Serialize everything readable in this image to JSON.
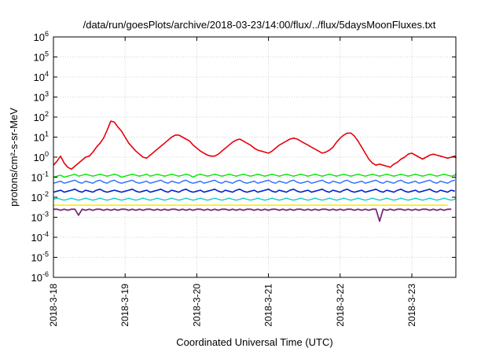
{
  "chart_data": {
    "type": "line",
    "title": "/data/run/goesPlots/archive/2018-03-23/14:00/flux/../flux/5daysMoonFluxes.txt",
    "xlabel": "Coordinated Universal Time (UTC)",
    "ylabel": "protons/cm²-s-sr-MeV",
    "yscale": "log",
    "ylim": [
      1e-06,
      1000000.0
    ],
    "y_ticks": [
      {
        "base": "10",
        "exp": "-6"
      },
      {
        "base": "10",
        "exp": "-5"
      },
      {
        "base": "10",
        "exp": "-4"
      },
      {
        "base": "10",
        "exp": "-3"
      },
      {
        "base": "10",
        "exp": "-2"
      },
      {
        "base": "10",
        "exp": "-1"
      },
      {
        "base": "10",
        "exp": "0"
      },
      {
        "base": "10",
        "exp": "1"
      },
      {
        "base": "10",
        "exp": "2"
      },
      {
        "base": "10",
        "exp": "3"
      },
      {
        "base": "10",
        "exp": "4"
      },
      {
        "base": "10",
        "exp": "5"
      },
      {
        "base": "10",
        "exp": "6"
      }
    ],
    "x_range_days": [
      "2018-03-18",
      "2018-03-23 14:00"
    ],
    "x_ticks": [
      "2018-3-18",
      "2018-3-19",
      "2018-3-20",
      "2018-3-21",
      "2018-3-22",
      "2018-3-23"
    ],
    "grid": true,
    "x_sampling_days": 0.05,
    "series": [
      {
        "color": "#e8000b",
        "width": 1.6,
        "log10_values": [
          -0.4,
          -0.2,
          0.05,
          -0.3,
          -0.5,
          -0.6,
          -0.45,
          -0.3,
          -0.15,
          0,
          0.05,
          0.25,
          0.5,
          0.7,
          0.95,
          1.35,
          1.8,
          1.75,
          1.5,
          1.3,
          1.0,
          0.7,
          0.5,
          0.3,
          0.15,
          0.0,
          -0.05,
          0.1,
          0.25,
          0.4,
          0.55,
          0.7,
          0.85,
          1.0,
          1.1,
          1.1,
          1.0,
          0.9,
          0.8,
          0.6,
          0.45,
          0.3,
          0.2,
          0.1,
          0.05,
          0.05,
          0.15,
          0.3,
          0.45,
          0.6,
          0.75,
          0.85,
          0.9,
          0.8,
          0.7,
          0.6,
          0.45,
          0.35,
          0.3,
          0.25,
          0.2,
          0.3,
          0.45,
          0.6,
          0.7,
          0.8,
          0.9,
          0.95,
          0.9,
          0.8,
          0.7,
          0.6,
          0.5,
          0.4,
          0.3,
          0.2,
          0.25,
          0.35,
          0.5,
          0.75,
          0.95,
          1.1,
          1.2,
          1.2,
          1.05,
          0.8,
          0.5,
          0.2,
          -0.1,
          -0.3,
          -0.4,
          -0.35,
          -0.4,
          -0.45,
          -0.5,
          -0.35,
          -0.25,
          -0.1,
          0.0,
          0.15,
          0.2,
          0.1,
          0.0,
          -0.1,
          0.0,
          0.1,
          0.15,
          0.1,
          0.05,
          0.0,
          -0.05,
          0.0,
          0.05,
          0.0,
          -0.05
        ]
      },
      {
        "color": "#00e600",
        "width": 1.4,
        "log10_values": [
          -1.0,
          -0.95,
          -0.9,
          -1.0,
          -0.95,
          -0.9,
          -0.85,
          -0.95,
          -0.9,
          -0.85,
          -0.9,
          -0.95,
          -0.9,
          -0.85,
          -0.9,
          -0.95,
          -0.9,
          -0.85,
          -0.9,
          -1.0,
          -0.95,
          -0.9,
          -0.85,
          -0.9,
          -0.95,
          -0.9,
          -0.85,
          -0.95,
          -0.9,
          -0.85,
          -0.9,
          -0.95,
          -0.9,
          -0.85,
          -0.9,
          -0.95,
          -0.9,
          -0.85,
          -0.9,
          -1.0,
          -0.9,
          -0.85,
          -0.9,
          -0.95,
          -0.9,
          -0.85,
          -0.9,
          -0.95,
          -0.9,
          -0.85,
          -0.9,
          -0.95,
          -0.9,
          -0.85,
          -0.9,
          -0.95,
          -0.9,
          -0.85,
          -0.9,
          -0.95,
          -0.9,
          -0.85,
          -0.9,
          -0.95,
          -0.9,
          -0.85,
          -0.9,
          -0.95,
          -0.9,
          -0.85,
          -0.9,
          -0.95,
          -0.9,
          -0.85,
          -0.9,
          -0.95,
          -0.9,
          -0.85,
          -0.9,
          -0.95,
          -0.9,
          -0.85,
          -0.9,
          -0.95,
          -0.9,
          -0.85,
          -0.9,
          -0.95,
          -0.9,
          -0.85,
          -0.9,
          -0.95,
          -0.9,
          -0.85,
          -0.9,
          -0.95,
          -0.9,
          -0.85,
          -0.9,
          -0.95,
          -0.9,
          -0.85,
          -0.9,
          -0.95,
          -0.9,
          -0.85,
          -0.9,
          -0.95,
          -0.9,
          -0.85,
          -0.9,
          -0.95,
          -0.9,
          -0.85,
          -0.9,
          -0.8
        ]
      },
      {
        "color": "#2a6cff",
        "width": 1.4,
        "log10_values": [
          -1.3,
          -1.25,
          -1.2,
          -1.3,
          -1.25,
          -1.2,
          -1.15,
          -1.25,
          -1.3,
          -1.2,
          -1.25,
          -1.3,
          -1.2,
          -1.15,
          -1.25,
          -1.3,
          -1.2,
          -1.15,
          -1.25,
          -1.3,
          -1.25,
          -1.2,
          -1.15,
          -1.25,
          -1.3,
          -1.25,
          -1.2,
          -1.3,
          -1.25,
          -1.2,
          -1.15,
          -1.25,
          -1.3,
          -1.2,
          -1.25,
          -1.3,
          -1.2,
          -1.15,
          -1.25,
          -1.3,
          -1.25,
          -1.2,
          -1.3,
          -1.25,
          -1.2,
          -1.15,
          -1.25,
          -1.3,
          -1.2,
          -1.25,
          -1.3,
          -1.2,
          -1.15,
          -1.25,
          -1.3,
          -1.25,
          -1.2,
          -1.3,
          -1.25,
          -1.2,
          -1.15,
          -1.25,
          -1.3,
          -1.2,
          -1.25,
          -1.3,
          -1.2,
          -1.15,
          -1.25,
          -1.3,
          -1.25,
          -1.2,
          -1.3,
          -1.25,
          -1.2,
          -1.15,
          -1.25,
          -1.3,
          -1.2,
          -1.25,
          -1.3,
          -1.2,
          -1.15,
          -1.25,
          -1.3,
          -1.25,
          -1.2,
          -1.3,
          -1.25,
          -1.2,
          -1.15,
          -1.25,
          -1.3,
          -1.2,
          -1.25,
          -1.3,
          -1.2,
          -1.15,
          -1.25,
          -1.3,
          -1.25,
          -1.2,
          -1.3,
          -1.25,
          -1.2,
          -1.15,
          -1.25,
          -1.3,
          -1.2,
          -1.25,
          -1.3,
          -1.2,
          -1.15
        ]
      },
      {
        "color": "#0020d0",
        "width": 1.6,
        "log10_values": [
          -1.75,
          -1.7,
          -1.65,
          -1.75,
          -1.7,
          -1.65,
          -1.6,
          -1.7,
          -1.75,
          -1.65,
          -1.7,
          -1.75,
          -1.65,
          -1.6,
          -1.7,
          -1.75,
          -1.7,
          -1.65,
          -1.7,
          -1.75,
          -1.7,
          -1.65,
          -1.6,
          -1.7,
          -1.75,
          -1.7,
          -1.65,
          -1.75,
          -1.7,
          -1.65,
          -1.6,
          -1.7,
          -1.75,
          -1.65,
          -1.7,
          -1.75,
          -1.65,
          -1.6,
          -1.7,
          -1.75,
          -1.7,
          -1.65,
          -1.75,
          -1.7,
          -1.65,
          -1.6,
          -1.7,
          -1.75,
          -1.65,
          -1.7,
          -1.75,
          -1.65,
          -1.6,
          -1.7,
          -1.75,
          -1.7,
          -1.65,
          -1.75,
          -1.7,
          -1.65,
          -1.6,
          -1.7,
          -1.75,
          -1.65,
          -1.7,
          -1.75,
          -1.65,
          -1.6,
          -1.7,
          -1.75,
          -1.7,
          -1.65,
          -1.75,
          -1.7,
          -1.65,
          -1.6,
          -1.7,
          -1.75,
          -1.65,
          -1.7,
          -1.75,
          -1.65,
          -1.6,
          -1.7,
          -1.75,
          -1.7,
          -1.65,
          -1.75,
          -1.7,
          -1.65,
          -1.6,
          -1.7,
          -1.75,
          -1.65,
          -1.7,
          -1.75,
          -1.65,
          -1.6,
          -1.7,
          -1.75,
          -1.7,
          -1.65,
          -1.75,
          -1.7,
          -1.65,
          -1.6,
          -1.7,
          -1.75,
          -1.65,
          -1.7,
          -1.75,
          -1.65,
          -1.7
        ]
      },
      {
        "color": "#00c8c8",
        "width": 1.3,
        "log10_values": [
          -2.1,
          -2.05,
          -2.1,
          -2.15,
          -2.1,
          -2.05,
          -2.1,
          -2.15,
          -2.1,
          -2.05,
          -2.1,
          -2.15,
          -2.1,
          -2.05,
          -2.1,
          -2.15,
          -2.1,
          -2.05,
          -2.1,
          -2.15,
          -2.1,
          -2.05,
          -2.1,
          -2.15,
          -2.1,
          -2.05,
          -2.1,
          -2.15,
          -2.1,
          -2.05,
          -2.1,
          -2.15,
          -2.1,
          -2.05,
          -2.1,
          -2.15,
          -2.1,
          -2.05,
          -2.1,
          -2.15,
          -2.1,
          -2.05,
          -2.1,
          -2.15,
          -2.1,
          -2.05,
          -2.1,
          -2.15,
          -2.1,
          -2.05,
          -2.1,
          -2.15,
          -2.1,
          -2.05,
          -2.1,
          -2.15,
          -2.1,
          -2.05,
          -2.1,
          -2.15,
          -2.1,
          -2.05,
          -2.1,
          -2.15,
          -2.1,
          -2.05,
          -2.1,
          -2.15,
          -2.1,
          -2.05,
          -2.1,
          -2.15,
          -2.1,
          -2.05,
          -2.1,
          -2.15,
          -2.1,
          -2.05,
          -2.1,
          -2.15,
          -2.1,
          -2.05,
          -2.1,
          -2.15,
          -2.1,
          -2.05,
          -2.1,
          -2.15,
          -2.1,
          -2.05,
          -2.1,
          -2.15,
          -2.1,
          -2.05,
          -2.1,
          -2.15,
          -2.1,
          -2.05,
          -2.1,
          -2.15,
          -2.1,
          -2.05,
          -2.1,
          -2.15,
          -2.1,
          -2.05,
          -2.1,
          -2.15,
          -2.1,
          -2.05,
          -2.1,
          -2.15,
          -2.1,
          -2.05
        ]
      },
      {
        "color": "#f2f200",
        "width": 1.6,
        "log10_values": [
          -2.4,
          -2.4,
          -2.4,
          -2.4,
          -2.4,
          -2.4,
          -2.4,
          -2.4,
          -2.4,
          -2.4,
          -2.4,
          -2.4,
          -2.4,
          -2.4,
          -2.4,
          -2.4,
          -2.4,
          -2.4,
          -2.4,
          -2.4,
          -2.4,
          -2.4,
          -2.4,
          -2.4,
          -2.4,
          -2.4,
          -2.4,
          -2.4,
          -2.4,
          -2.4,
          -2.4,
          -2.4,
          -2.4,
          -2.4,
          -2.4,
          -2.4,
          -2.4,
          -2.4,
          -2.4,
          -2.4,
          -2.4,
          -2.4,
          -2.4,
          -2.4,
          -2.4,
          -2.4,
          -2.4,
          -2.4,
          -2.4,
          -2.4,
          -2.4,
          -2.4,
          -2.4,
          -2.4,
          -2.4,
          -2.4,
          -2.4,
          -2.4,
          -2.4,
          -2.4,
          -2.4,
          -2.4,
          -2.4,
          -2.4,
          -2.4,
          -2.4,
          -2.4,
          -2.4,
          -2.4,
          -2.4,
          -2.4,
          -2.4,
          -2.4,
          -2.4,
          -2.4,
          -2.4,
          -2.4,
          -2.4,
          -2.4,
          -2.4,
          -2.4,
          -2.4,
          -2.4,
          -2.4,
          -2.4,
          -2.4,
          -2.4,
          -2.4,
          -2.4,
          -2.4,
          -2.4,
          -2.4,
          -2.4,
          -2.4,
          -2.4,
          -2.4,
          -2.4,
          -2.4,
          -2.4,
          -2.4,
          -2.4,
          -2.4,
          -2.4,
          -2.4,
          -2.4,
          -2.4,
          -2.4,
          -2.4,
          -2.4,
          -2.4,
          -2.4
        ]
      },
      {
        "color": "#7a2a7a",
        "width": 1.8,
        "log10_values": [
          -2.6,
          -2.6,
          -2.65,
          -2.6,
          -2.65,
          -2.6,
          -2.6,
          -2.9,
          -2.6,
          -2.65,
          -2.6,
          -2.65,
          -2.6,
          -2.6,
          -2.65,
          -2.6,
          -2.65,
          -2.6,
          -2.65,
          -2.6,
          -2.6,
          -2.65,
          -2.6,
          -2.65,
          -2.6,
          -2.65,
          -2.6,
          -2.6,
          -2.65,
          -2.6,
          -2.65,
          -2.6,
          -2.65,
          -2.6,
          -2.6,
          -2.65,
          -2.6,
          -2.65,
          -2.6,
          -2.65,
          -2.6,
          -2.6,
          -2.65,
          -2.6,
          -2.65,
          -2.6,
          -2.65,
          -2.6,
          -2.6,
          -2.65,
          -2.6,
          -2.65,
          -2.6,
          -2.65,
          -2.6,
          -2.6,
          -2.65,
          -2.6,
          -2.65,
          -2.6,
          -2.65,
          -2.6,
          -2.6,
          -2.65,
          -2.6,
          -2.65,
          -2.6,
          -2.65,
          -2.6,
          -2.6,
          -2.65,
          -2.6,
          -2.65,
          -2.6,
          -2.65,
          -2.6,
          -2.6,
          -2.65,
          -2.6,
          -2.65,
          -2.6,
          -2.65,
          -2.6,
          -2.6,
          -2.65,
          -2.6,
          -2.65,
          -2.6,
          -2.65,
          -2.6,
          -2.6,
          -3.2,
          -2.6,
          -2.65,
          -2.6,
          -2.65,
          -2.6,
          -2.6,
          -2.65,
          -2.6,
          -2.65,
          -2.6,
          -2.65,
          -2.6,
          -2.6,
          -2.65,
          -2.6,
          -2.65,
          -2.6,
          -2.65,
          -2.6,
          -2.6
        ]
      }
    ]
  }
}
